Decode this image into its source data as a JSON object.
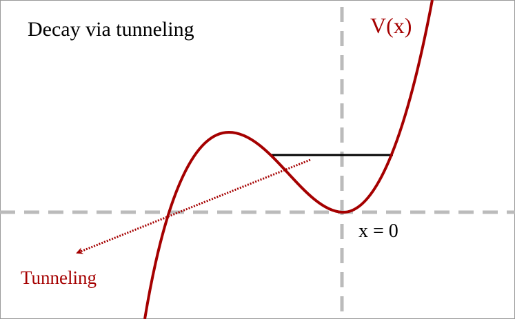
{
  "title": "Decay via tunneling",
  "curve_label": "V(x)",
  "origin_label": "x = 0",
  "arrow_label": "Tunneling"
}
